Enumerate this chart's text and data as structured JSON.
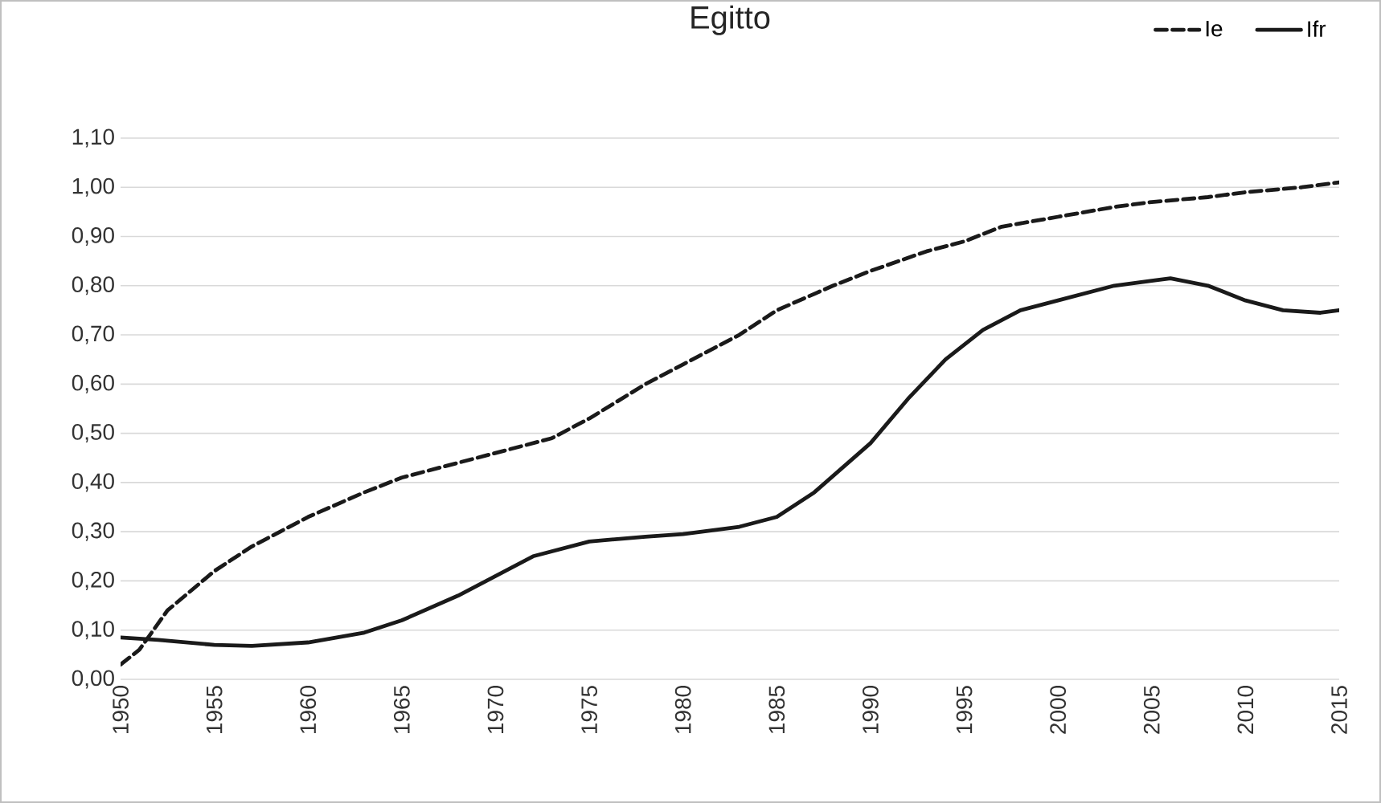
{
  "chart_data": {
    "type": "line",
    "title": "Egitto",
    "x": [
      1950,
      1951,
      1952.5,
      1955,
      1957,
      1960,
      1963,
      1965,
      1968,
      1970,
      1973,
      1975,
      1978,
      1980,
      1983,
      1985,
      1988,
      1990,
      1993,
      1995,
      1997,
      2000,
      2003,
      2005,
      2008,
      2010,
      2013,
      2015
    ],
    "series": [
      {
        "name": "Ie",
        "color": "#1a1a1a",
        "line_style": "dashed",
        "values": [
          0.03,
          0.06,
          0.14,
          0.22,
          0.27,
          0.33,
          0.38,
          0.41,
          0.44,
          0.46,
          0.49,
          0.53,
          0.6,
          0.64,
          0.7,
          0.75,
          0.8,
          0.83,
          0.87,
          0.89,
          0.92,
          0.94,
          0.96,
          0.97,
          0.98,
          0.99,
          1.0,
          1.01
        ]
      },
      {
        "name": "Ifr",
        "color": "#1a1a1a",
        "line_style": "solid",
        "x": [
          1950,
          1952,
          1955,
          1957,
          1960,
          1963,
          1965,
          1968,
          1970,
          1972,
          1975,
          1978,
          1980,
          1983,
          1985,
          1987,
          1990,
          1992,
          1994,
          1996,
          1998,
          2000,
          2003,
          2005,
          2006,
          2008,
          2010,
          2012,
          2014,
          2015
        ],
        "values": [
          0.085,
          0.08,
          0.07,
          0.068,
          0.075,
          0.095,
          0.12,
          0.17,
          0.21,
          0.25,
          0.28,
          0.29,
          0.295,
          0.31,
          0.33,
          0.38,
          0.48,
          0.57,
          0.65,
          0.71,
          0.75,
          0.77,
          0.8,
          0.81,
          0.815,
          0.8,
          0.77,
          0.75,
          0.745,
          0.75
        ]
      }
    ],
    "xlim": [
      1950,
      2015
    ],
    "xticks": [
      1950,
      1955,
      1960,
      1965,
      1970,
      1975,
      1980,
      1985,
      1990,
      1995,
      2000,
      2005,
      2010,
      2015
    ],
    "ylim": [
      0,
      1.1
    ],
    "yticks": [
      {
        "value": 0,
        "label": "0,00"
      },
      {
        "value": 0.1,
        "label": "0,10"
      },
      {
        "value": 0.2,
        "label": "0,20"
      },
      {
        "value": 0.3,
        "label": "0,30"
      },
      {
        "value": 0.4,
        "label": "0,40"
      },
      {
        "value": 0.5,
        "label": "0,50"
      },
      {
        "value": 0.6,
        "label": "0,60"
      },
      {
        "value": 0.7,
        "label": "0,70"
      },
      {
        "value": 0.8,
        "label": "0,80"
      },
      {
        "value": 0.9,
        "label": "0,90"
      },
      {
        "value": 1.0,
        "label": "1,00"
      },
      {
        "value": 1.1,
        "label": "1,10"
      }
    ],
    "grid": "y",
    "legend": "top right",
    "marker": "none"
  }
}
